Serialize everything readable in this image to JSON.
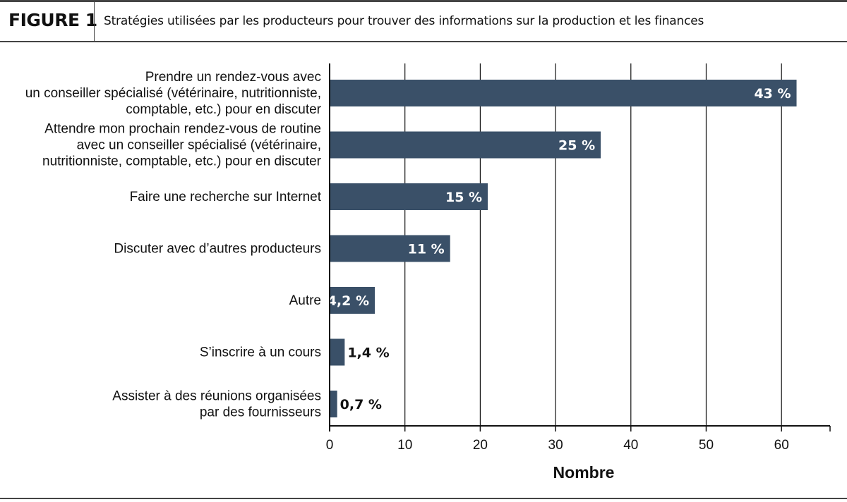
{
  "figure": {
    "label": "FIGURE 1",
    "title": "Stratégies utilisées par les producteurs pour trouver des informations sur la production et les finances"
  },
  "colors": {
    "bar": "#3a5068",
    "grid": "#111111",
    "text": "#111111",
    "rule": "#444444"
  },
  "chart_data": {
    "type": "bar",
    "orientation": "horizontal",
    "categories": [
      [
        "Prendre un rendez-vous avec",
        "un conseiller spécialisé (vétérinaire, nutritionniste,",
        "comptable, etc.) pour en discuter"
      ],
      [
        "Attendre mon prochain rendez-vous de routine",
        "avec un conseiller spécialisé (vétérinaire,",
        "nutritionniste, comptable, etc.) pour en discuter"
      ],
      [
        "Faire une recherche sur Internet"
      ],
      [
        "Discuter avec d’autres producteurs"
      ],
      [
        "Autre"
      ],
      [
        "S’inscrire à un cours"
      ],
      [
        "Assister à des réunions organisées",
        "par des fournisseurs"
      ]
    ],
    "values": [
      62,
      36,
      21,
      16,
      6,
      2,
      1
    ],
    "data_labels": [
      "43 %",
      "25 %",
      "15 %",
      "11 %",
      "4,2 %",
      "1,4 %",
      "0,7 %"
    ],
    "xlabel": "Nombre",
    "xlim": [
      0,
      67
    ],
    "xticks": [
      0,
      10,
      20,
      30,
      40,
      50,
      60
    ],
    "grid": "vertical"
  }
}
